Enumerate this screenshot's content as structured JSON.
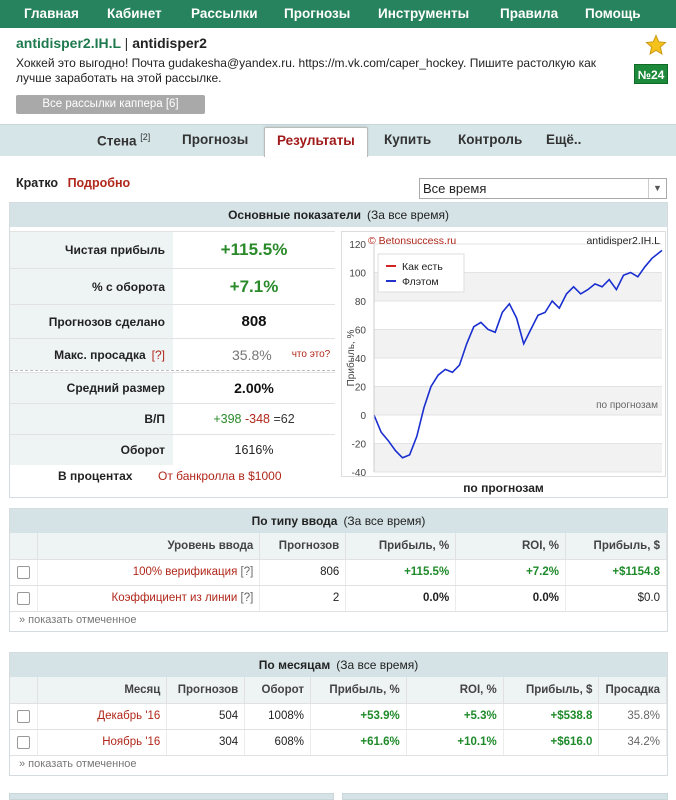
{
  "nav": [
    "Главная",
    "Кабинет",
    "Рассылки",
    "Прогнозы",
    "Инструменты",
    "Правила",
    "Помощь"
  ],
  "profile": {
    "nick": "antidisper2.IH.L",
    "name": "antidisper2",
    "description": "Хоккей это выгодно! Почта gudakesha@yandex.ru. https://m.vk.com/caper_hockey. Пишите растолкую как лучше заработать на этой рассылке.",
    "all_button": "Все рассылки каппера [6]",
    "badge": "№24"
  },
  "tabs": [
    "Стена",
    "Прогнозы",
    "Результаты",
    "Купить",
    "Контроль",
    "Ещё.."
  ],
  "tab_wall_sup": "[2]",
  "views": {
    "brief": "Кратко",
    "detailed": "Подробно"
  },
  "period": "Все время",
  "main": {
    "title": "Основные показатели",
    "subtitle": "(За все время)",
    "rows": [
      {
        "label": "Чистая прибыль",
        "value": "+115.5%"
      },
      {
        "label": "% с оборота",
        "value": "+7.1%"
      },
      {
        "label": "Прогнозов сделано",
        "value": "808"
      },
      {
        "label": "Макс. просадка",
        "q": "[?]",
        "value": "35.8%",
        "hint": "что это?"
      },
      {
        "label": "Средний размер",
        "value": "2.00%"
      },
      {
        "label": "В/П",
        "w": "+398",
        "l": "-348",
        "d": "=62"
      },
      {
        "label": "Оборот",
        "value": "1616%"
      }
    ],
    "in_percent": "В процентах",
    "from_bank": "От банкролла в $1000",
    "chart_caption": "по прогнозам"
  },
  "chart_data": {
    "type": "line",
    "title": "antidisper2.IH.L",
    "watermark": "© Betonsuccess.ru",
    "ylabel": "Прибыль, %",
    "xlabel": "по прогнозам",
    "ylim": [
      -40,
      120
    ],
    "yticks": [
      -40,
      -20,
      0,
      20,
      40,
      60,
      80,
      100,
      120
    ],
    "legend": [
      "Как есть",
      "Флэтом"
    ],
    "legend_colors": [
      "#d22222",
      "#2233cc"
    ],
    "series": [
      {
        "name": "Флэтом",
        "x": [
          0,
          20,
          40,
          60,
          80,
          100,
          120,
          140,
          160,
          180,
          200,
          220,
          240,
          260,
          280,
          300,
          320,
          340,
          360,
          380,
          400,
          420,
          440,
          460,
          480,
          500,
          520,
          540,
          560,
          580,
          600,
          620,
          640,
          660,
          680,
          700,
          720,
          740,
          760,
          780,
          808
        ],
        "y": [
          0,
          -12,
          -18,
          -25,
          -30,
          -28,
          -15,
          5,
          20,
          28,
          32,
          30,
          35,
          50,
          62,
          65,
          60,
          58,
          72,
          78,
          68,
          50,
          60,
          70,
          72,
          80,
          75,
          85,
          90,
          85,
          88,
          92,
          90,
          95,
          88,
          98,
          100,
          97,
          104,
          110,
          115.5
        ]
      }
    ]
  },
  "by_type": {
    "title": "По типу ввода",
    "subtitle": "(За все время)",
    "columns": [
      "Уровень ввода",
      "Прогнозов",
      "Прибыль, %",
      "ROI, %",
      "Прибыль, $"
    ],
    "rows": [
      {
        "name": "100% верификация",
        "q": "[?]",
        "count": "806",
        "profit_pct": "+115.5%",
        "roi": "+7.2%",
        "profit_usd": "+$1154.8"
      },
      {
        "name": "Коэффициент из линии",
        "q": "[?]",
        "count": "2",
        "profit_pct": "0.0%",
        "roi": "0.0%",
        "profit_usd": "$0.0"
      }
    ],
    "show_selected": "» показать отмеченное"
  },
  "by_month": {
    "title": "По месяцам",
    "subtitle": "(За все время)",
    "columns": [
      "Месяц",
      "Прогнозов",
      "Оборот",
      "Прибыль, %",
      "ROI, %",
      "Прибыль, $",
      "Просадка"
    ],
    "rows": [
      {
        "month": "Декабрь '16",
        "count": "504",
        "turnover": "1008%",
        "profit_pct": "+53.9%",
        "roi": "+5.3%",
        "profit_usd": "+$538.8",
        "drawdown": "35.8%"
      },
      {
        "month": "Ноябрь '16",
        "count": "304",
        "turnover": "608%",
        "profit_pct": "+61.6%",
        "roi": "+10.1%",
        "profit_usd": "+$616.0",
        "drawdown": "34.2%"
      }
    ],
    "show_selected": "» показать отмеченное"
  }
}
